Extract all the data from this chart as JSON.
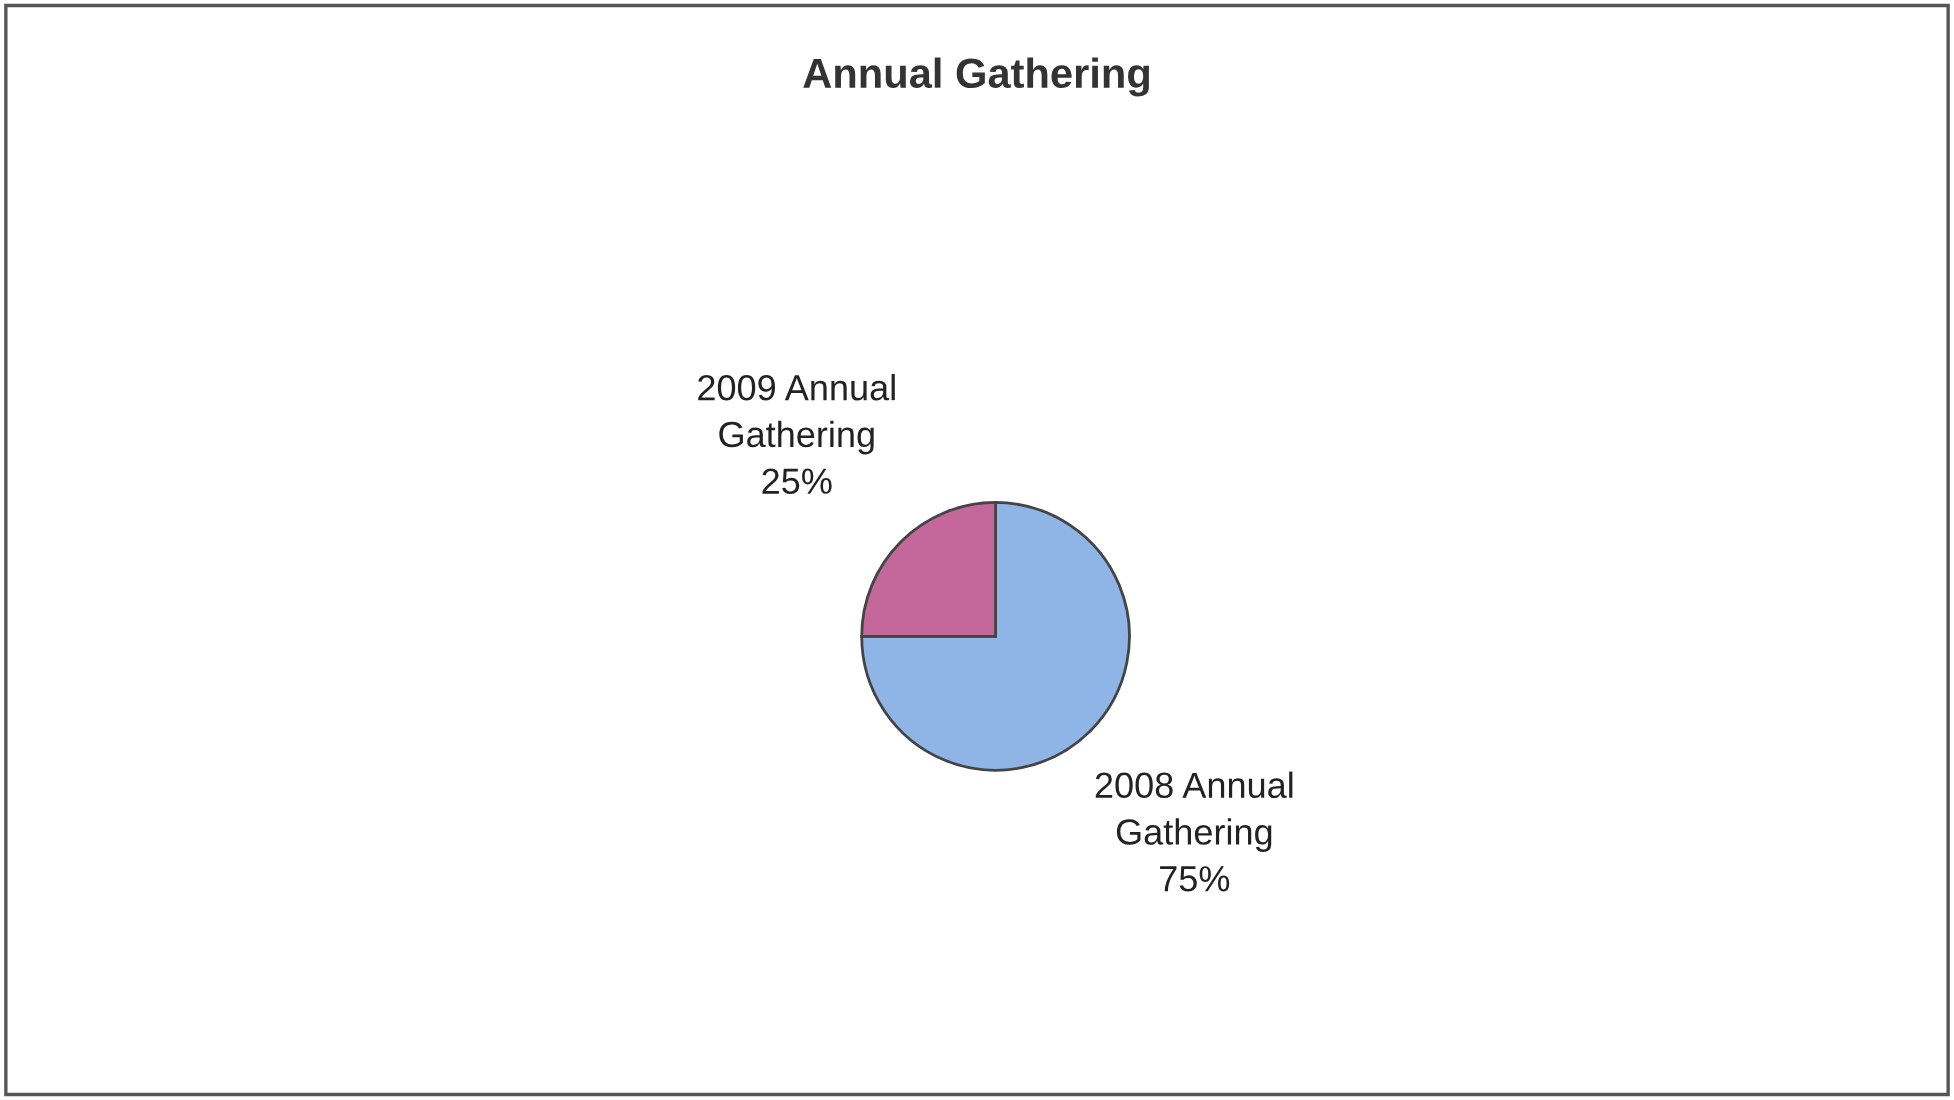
{
  "chart_data": {
    "type": "pie",
    "title": "Annual Gathering",
    "categories": [
      "2008 Annual Gathering",
      "2009 Annual Gathering"
    ],
    "values": [
      75,
      25
    ],
    "colors": [
      "#8fb4e6",
      "#c4679a"
    ],
    "value_labels": [
      "75%",
      "25%"
    ],
    "legend": false
  }
}
